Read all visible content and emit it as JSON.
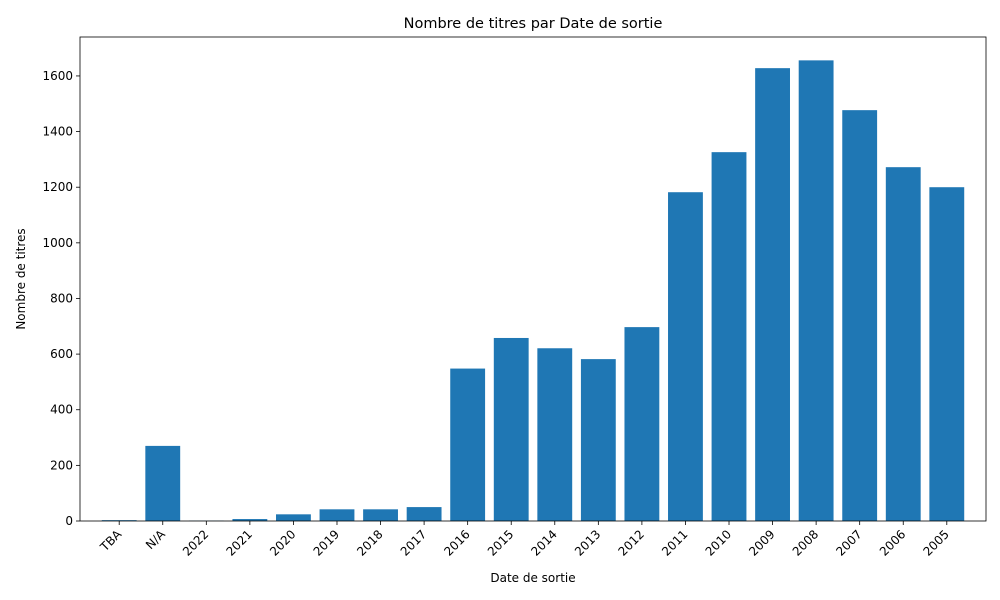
{
  "chart_data": {
    "type": "bar",
    "title": "Nombre de titres par Date de sortie",
    "xlabel": "Date de sortie",
    "ylabel": "Nombre de titres",
    "categories": [
      "TBA",
      "N/A",
      "2022",
      "2021",
      "2020",
      "2019",
      "2018",
      "2017",
      "2016",
      "2015",
      "2014",
      "2013",
      "2012",
      "2011",
      "2010",
      "2009",
      "2008",
      "2007",
      "2006",
      "2005"
    ],
    "values": [
      3,
      270,
      1,
      7,
      24,
      42,
      42,
      50,
      548,
      658,
      621,
      582,
      697,
      1182,
      1326,
      1628,
      1656,
      1477,
      1272,
      1200
    ],
    "ylim": [
      0,
      1740
    ],
    "yticks": [
      0,
      200,
      400,
      600,
      800,
      1000,
      1200,
      1400,
      1600
    ],
    "bar_color": "#1f77b4",
    "grid": false,
    "legend": "none"
  }
}
